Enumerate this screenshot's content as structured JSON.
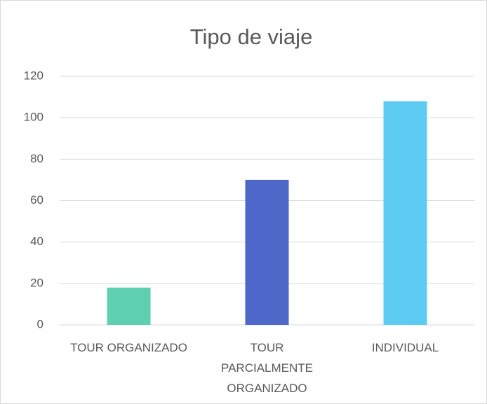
{
  "chart_data": {
    "type": "bar",
    "title": "Tipo de viaje",
    "categories": [
      "TOUR ORGANIZADO",
      "TOUR PARCIALMENTE ORGANIZADO",
      "INDIVIDUAL"
    ],
    "values": [
      18,
      70,
      108
    ],
    "colors": [
      "#5fcfb1",
      "#4e68c9",
      "#5ecbf3"
    ],
    "ylim": [
      0,
      120
    ],
    "yticks": [
      0,
      20,
      40,
      60,
      80,
      100,
      120
    ],
    "grid": true
  }
}
